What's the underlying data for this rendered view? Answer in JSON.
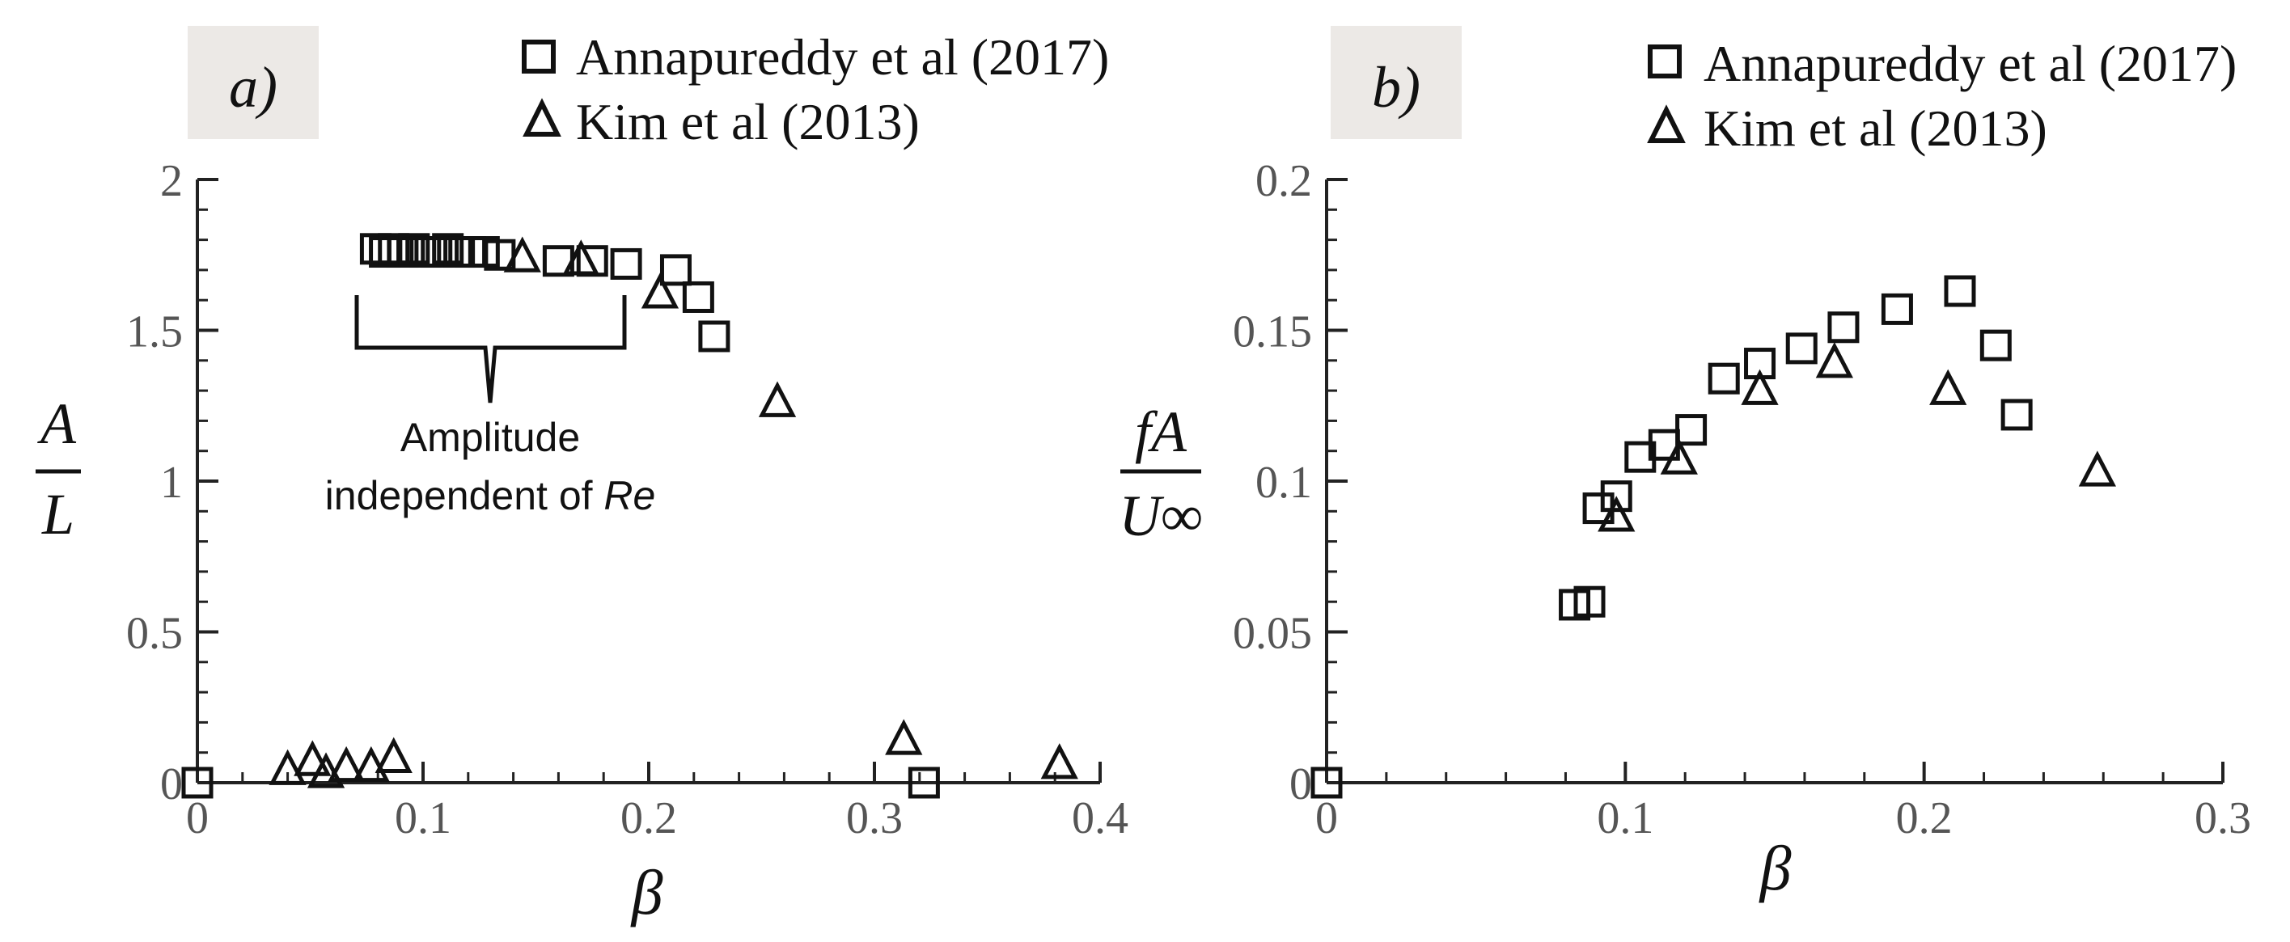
{
  "colors": {
    "marker": "#111111",
    "axis": "#222222",
    "tick_text": "#555555",
    "panel_tag_bg": "#ece9e6"
  },
  "chart_data": [
    {
      "type": "scatter",
      "panel_label": "a)",
      "xlabel": "β",
      "ylabel_num": "A",
      "ylabel_den": "L",
      "xlim": [
        0,
        0.4
      ],
      "ylim": [
        0,
        2
      ],
      "xticks": [
        "0",
        "0.1",
        "0.2",
        "0.3",
        "0.4"
      ],
      "yticks": [
        "0",
        "0.5",
        "1",
        "1.5",
        "2"
      ],
      "legend_position": "top",
      "annotation": {
        "line1": "Amplitude",
        "line2_prefix": "independent of ",
        "line2_italic": "Re"
      },
      "series": [
        {
          "name": "Annapureddy et al (2017)",
          "marker": "square",
          "points": [
            [
              0.0,
              0.0
            ],
            [
              0.079,
              1.77
            ],
            [
              0.083,
              1.76
            ],
            [
              0.087,
              1.77
            ],
            [
              0.091,
              1.76
            ],
            [
              0.096,
              1.77
            ],
            [
              0.101,
              1.76
            ],
            [
              0.106,
              1.76
            ],
            [
              0.111,
              1.77
            ],
            [
              0.116,
              1.76
            ],
            [
              0.121,
              1.76
            ],
            [
              0.127,
              1.76
            ],
            [
              0.134,
              1.75
            ],
            [
              0.16,
              1.73
            ],
            [
              0.175,
              1.73
            ],
            [
              0.19,
              1.72
            ],
            [
              0.212,
              1.7
            ],
            [
              0.222,
              1.61
            ],
            [
              0.229,
              1.48
            ],
            [
              0.322,
              0.0
            ]
          ]
        },
        {
          "name": "Kim et al (2013)",
          "marker": "triangle",
          "points": [
            [
              0.04,
              0.04
            ],
            [
              0.051,
              0.07
            ],
            [
              0.057,
              0.03
            ],
            [
              0.066,
              0.05
            ],
            [
              0.077,
              0.05
            ],
            [
              0.087,
              0.08
            ],
            [
              0.144,
              1.74
            ],
            [
              0.17,
              1.73
            ],
            [
              0.205,
              1.62
            ],
            [
              0.257,
              1.26
            ],
            [
              0.313,
              0.14
            ],
            [
              0.382,
              0.06
            ]
          ]
        }
      ]
    },
    {
      "type": "scatter",
      "panel_label": "b)",
      "xlabel": "β",
      "ylabel_num": "fA",
      "ylabel_den": "U∞",
      "xlim": [
        0,
        0.3
      ],
      "ylim": [
        0,
        0.2
      ],
      "xticks": [
        "0",
        "0.1",
        "0.2",
        "0.3"
      ],
      "yticks": [
        "0",
        "0.05",
        "0.1",
        "0.15",
        "0.2"
      ],
      "legend_position": "top",
      "series": [
        {
          "name": "Annapureddy et al (2017)",
          "marker": "square",
          "points": [
            [
              0.0,
              0.0
            ],
            [
              0.083,
              0.059
            ],
            [
              0.088,
              0.06
            ],
            [
              0.091,
              0.091
            ],
            [
              0.097,
              0.095
            ],
            [
              0.105,
              0.108
            ],
            [
              0.113,
              0.112
            ],
            [
              0.122,
              0.117
            ],
            [
              0.133,
              0.134
            ],
            [
              0.145,
              0.139
            ],
            [
              0.159,
              0.144
            ],
            [
              0.173,
              0.151
            ],
            [
              0.191,
              0.157
            ],
            [
              0.212,
              0.163
            ],
            [
              0.224,
              0.145
            ],
            [
              0.231,
              0.122
            ]
          ]
        },
        {
          "name": "Kim et al (2013)",
          "marker": "triangle",
          "points": [
            [
              0.097,
              0.088
            ],
            [
              0.118,
              0.107
            ],
            [
              0.145,
              0.13
            ],
            [
              0.17,
              0.139
            ],
            [
              0.208,
              0.13
            ],
            [
              0.258,
              0.103
            ]
          ]
        }
      ]
    }
  ]
}
